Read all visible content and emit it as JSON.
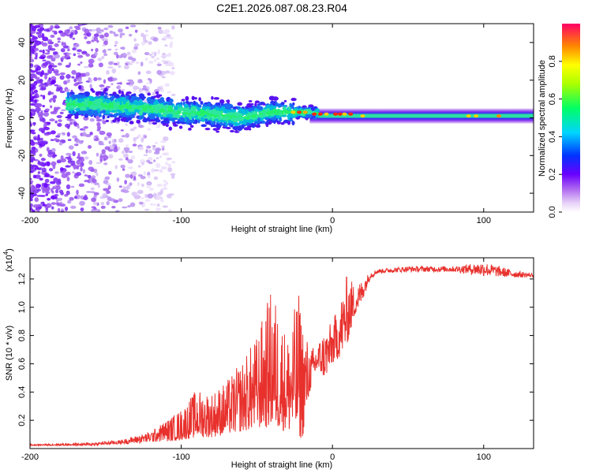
{
  "title": "C2E1.2026.087.08.23.R04",
  "chart_data": [
    {
      "type": "heatmap",
      "name": "spectrogram",
      "xlabel": "Height of straight line (km)",
      "ylabel": "Frequency (Hz)",
      "xlim": [
        -200,
        133
      ],
      "ylim": [
        -50,
        50
      ],
      "xticks": [
        -200,
        -100,
        0,
        100
      ],
      "yticks": [
        -40,
        -20,
        0,
        20,
        40
      ],
      "xtick_labels": [
        "-200",
        "-100",
        "0",
        "100"
      ],
      "ytick_labels": [
        "-40",
        "-20",
        "0",
        "20",
        "40"
      ],
      "colorbar": {
        "label": "Normalized spectral amplitude",
        "range": [
          0.0,
          1.0
        ],
        "ticks": [
          0.0,
          0.2,
          0.4,
          0.6,
          0.8
        ],
        "tick_labels": [
          "0.0",
          "0.2",
          "0.4",
          "0.6",
          "0.8"
        ]
      },
      "band": {
        "description": "signal band",
        "center_freq": [
          [
            -200,
            8
          ],
          [
            -160,
            7
          ],
          [
            -140,
            6
          ],
          [
            -120,
            5
          ],
          [
            -100,
            3
          ],
          [
            -80,
            2
          ],
          [
            -60,
            0
          ],
          [
            -40,
            3
          ],
          [
            -20,
            3
          ],
          [
            0,
            2
          ],
          [
            20,
            1
          ],
          [
            60,
            1
          ],
          [
            133,
            1
          ]
        ]
      }
    },
    {
      "type": "line",
      "name": "snr",
      "xlabel": "Height of straight line (km)",
      "ylabel": "SNR (10 * v/v)",
      "yscale_label": "(x10",
      "yscale_exponent": "4",
      "yscale_suffix": ")",
      "xlim": [
        -200,
        133
      ],
      "ylim": [
        0,
        1.35
      ],
      "xticks": [
        -200,
        -100,
        0,
        100
      ],
      "yticks": [
        0.2,
        0.4,
        0.6,
        0.8,
        1.0,
        1.2
      ],
      "xtick_labels": [
        "-200",
        "-100",
        "0",
        "100"
      ],
      "ytick_labels": [
        "0.2",
        "0.4",
        "0.6",
        "0.8",
        "1.0",
        "1.2"
      ],
      "series": [
        {
          "name": "SNR",
          "color": "#e8312d",
          "envelope": [
            [
              -200,
              0.02,
              0.03
            ],
            [
              -160,
              0.02,
              0.04
            ],
            [
              -140,
              0.03,
              0.06
            ],
            [
              -120,
              0.04,
              0.12
            ],
            [
              -100,
              0.06,
              0.28
            ],
            [
              -90,
              0.08,
              0.42
            ],
            [
              -80,
              0.08,
              0.4
            ],
            [
              -70,
              0.1,
              0.48
            ],
            [
              -60,
              0.12,
              0.62
            ],
            [
              -50,
              0.14,
              0.8
            ],
            [
              -40,
              0.15,
              1.15
            ],
            [
              -30,
              0.12,
              0.8
            ],
            [
              -22,
              0.08,
              1.12
            ],
            [
              -20,
              0.06,
              0.95
            ],
            [
              -15,
              0.4,
              0.7
            ],
            [
              -10,
              0.55,
              0.75
            ],
            [
              -5,
              0.5,
              0.85
            ],
            [
              0,
              0.6,
              0.9
            ],
            [
              5,
              0.65,
              1.05
            ],
            [
              10,
              0.75,
              1.25
            ],
            [
              15,
              0.95,
              1.15
            ],
            [
              20,
              1.05,
              1.2
            ],
            [
              25,
              1.2,
              1.25
            ],
            [
              30,
              1.24,
              1.27
            ],
            [
              50,
              1.25,
              1.29
            ],
            [
              80,
              1.25,
              1.29
            ],
            [
              100,
              1.22,
              1.32
            ],
            [
              120,
              1.21,
              1.26
            ],
            [
              133,
              1.21,
              1.24
            ]
          ]
        }
      ]
    }
  ]
}
